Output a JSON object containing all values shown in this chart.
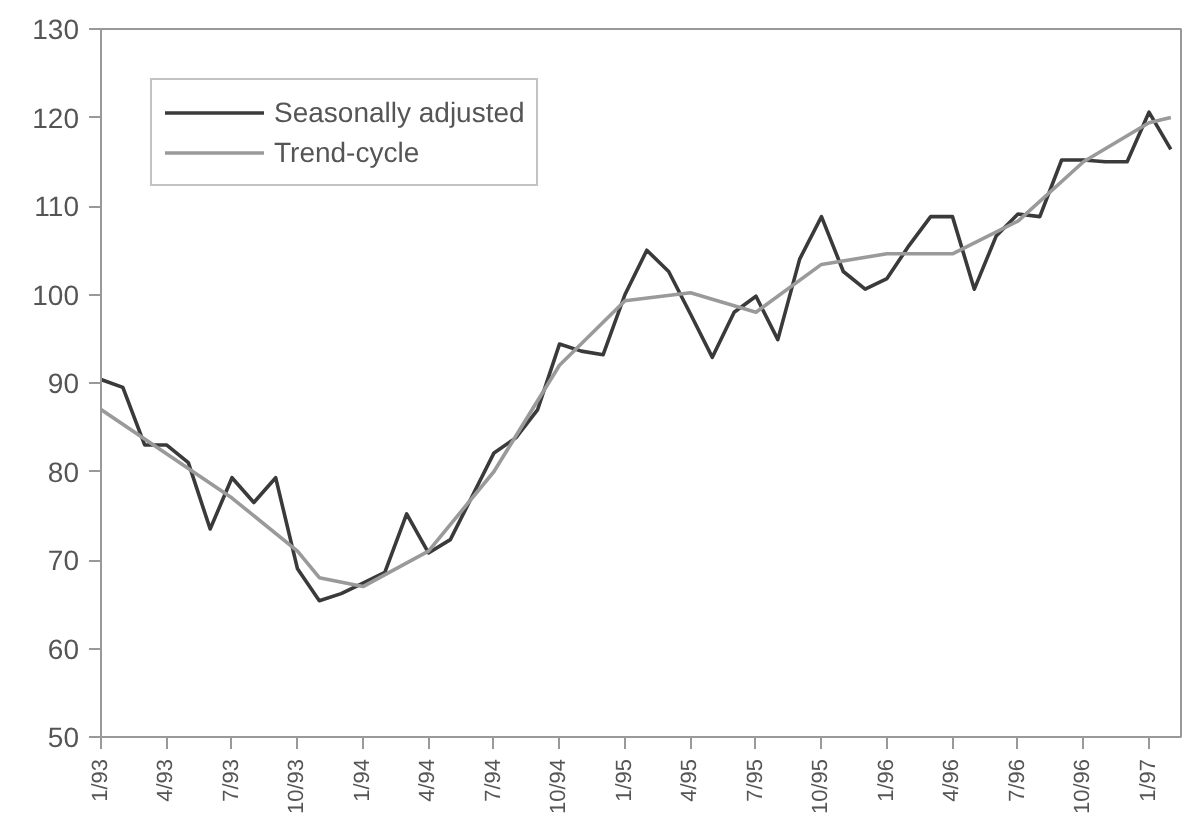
{
  "chart_data": {
    "type": "line",
    "x": [
      "1993-01",
      "1993-02",
      "1993-03",
      "1993-04",
      "1993-05",
      "1993-06",
      "1993-07",
      "1993-08",
      "1993-09",
      "1993-10",
      "1993-11",
      "1993-12",
      "1994-01",
      "1994-02",
      "1994-03",
      "1994-04",
      "1994-05",
      "1994-06",
      "1994-07",
      "1994-08",
      "1994-09",
      "1994-10",
      "1994-11",
      "1994-12",
      "1995-01",
      "1995-02",
      "1995-03",
      "1995-04",
      "1995-05",
      "1995-06",
      "1995-07",
      "1995-08",
      "1995-09",
      "1995-10",
      "1995-11",
      "1995-12",
      "1996-01",
      "1996-02",
      "1996-03",
      "1996-04",
      "1996-05",
      "1996-06",
      "1996-07",
      "1996-08",
      "1996-09",
      "1996-10",
      "1996-11",
      "1996-12",
      "1997-01",
      "1997-02"
    ],
    "series": [
      {
        "name": "Seasonally adjusted",
        "color": "#3a3a3a",
        "values": [
          90.4,
          89.5,
          83,
          83,
          81,
          73.5,
          79.3,
          76.5,
          79.3,
          69,
          65.4,
          66.2,
          67.4,
          68.6,
          75.2,
          70.8,
          72.3,
          77.2,
          82.1,
          83.8,
          87,
          94.4,
          93.6,
          93.2,
          100,
          105,
          102.6,
          97.8,
          92.9,
          98,
          99.8,
          94.9,
          104,
          108.8,
          102.6,
          100.6,
          101.8,
          105.5,
          108.8,
          108.8,
          100.6,
          106.6,
          109.1,
          108.8,
          115.2,
          115.2,
          115,
          115,
          120.6,
          116.4
        ]
      },
      {
        "name": "Trend-cycle",
        "color": "#9a9a9a",
        "x": [
          "1993-01",
          "1993-04",
          "1993-07",
          "1993-10",
          "1993-11",
          "1994-01",
          "1994-04",
          "1994-07",
          "1994-10",
          "1995-01",
          "1995-04",
          "1995-07",
          "1995-10",
          "1996-01",
          "1996-04",
          "1996-07",
          "1996-10",
          "1997-01",
          "1997-02"
        ],
        "values": [
          87,
          82,
          77,
          71,
          68,
          67,
          71,
          80,
          92,
          99.3,
          100.2,
          98,
          103.4,
          104.6,
          104.6,
          108.3,
          115,
          119.4,
          120
        ]
      }
    ],
    "xlim": [
      "1993-01",
      "1997-02-15"
    ],
    "ylim": [
      50,
      130
    ],
    "xticks": [
      {
        "value": "1993-01",
        "label": "1/93"
      },
      {
        "value": "1993-04",
        "label": "4/93"
      },
      {
        "value": "1993-07",
        "label": "7/93"
      },
      {
        "value": "1993-10",
        "label": "10/93"
      },
      {
        "value": "1994-01",
        "label": "1/94"
      },
      {
        "value": "1994-04",
        "label": "4/94"
      },
      {
        "value": "1994-07",
        "label": "7/94"
      },
      {
        "value": "1994-10",
        "label": "10/94"
      },
      {
        "value": "1995-01",
        "label": "1/95"
      },
      {
        "value": "1995-04",
        "label": "4/95"
      },
      {
        "value": "1995-07",
        "label": "7/95"
      },
      {
        "value": "1995-10",
        "label": "10/95"
      },
      {
        "value": "1996-01",
        "label": "1/96"
      },
      {
        "value": "1996-04",
        "label": "4/96"
      },
      {
        "value": "1996-07",
        "label": "7/96"
      },
      {
        "value": "1996-10",
        "label": "10/96"
      },
      {
        "value": "1997-01",
        "label": "1/97"
      }
    ],
    "yticks": [
      50,
      60,
      70,
      80,
      90,
      100,
      110,
      120,
      130
    ],
    "grid": false,
    "legend": "top left",
    "marker": "none",
    "line_style": "solid"
  }
}
